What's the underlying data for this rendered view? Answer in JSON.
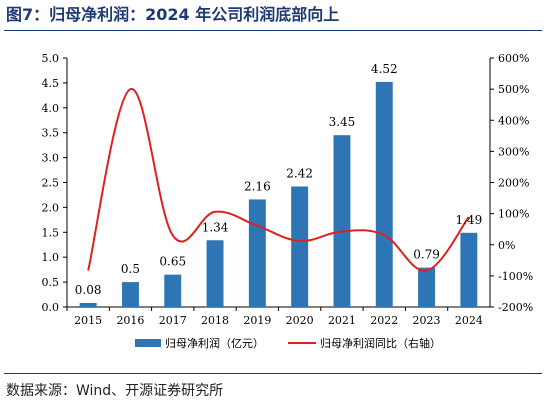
{
  "header": {
    "title": "图7：归母净利润：2024 年公司利润底部向上"
  },
  "footer": {
    "source": "数据来源：Wind、开源证券研究所"
  },
  "colors": {
    "bar": "#2e75b6",
    "line": "#e02020",
    "title": "#1f3a73"
  },
  "chart_data": {
    "type": "bar",
    "title": "",
    "categories": [
      "2015",
      "2016",
      "2017",
      "2018",
      "2019",
      "2020",
      "2021",
      "2022",
      "2023",
      "2024"
    ],
    "series": [
      {
        "name": "归母净利润（亿元）",
        "type": "bar",
        "axis": "left",
        "values": [
          0.08,
          0.5,
          0.65,
          1.34,
          2.16,
          2.42,
          3.45,
          4.52,
          0.79,
          1.49
        ],
        "labels": [
          "0.08",
          "0.5",
          "0.65",
          "1.34",
          "2.16",
          "2.42",
          "3.45",
          "4.52",
          "0.79",
          "1.49"
        ]
      },
      {
        "name": "归母净利润同比（右轴）",
        "type": "line",
        "axis": "right",
        "values": [
          -83,
          500,
          30,
          106,
          61,
          12,
          43,
          31,
          -83,
          89
        ]
      }
    ],
    "y_left": {
      "min": 0,
      "max": 5.0,
      "step": 0.5,
      "ticks": [
        "0.0",
        "0.5",
        "1.0",
        "1.5",
        "2.0",
        "2.5",
        "3.0",
        "3.5",
        "4.0",
        "4.5",
        "5.0"
      ]
    },
    "y_right": {
      "min": -200,
      "max": 600,
      "step": 100,
      "ticks": [
        "-200%",
        "-100%",
        "0%",
        "100%",
        "200%",
        "300%",
        "400%",
        "500%",
        "600%"
      ]
    },
    "grid": false,
    "legend": "bottom"
  }
}
